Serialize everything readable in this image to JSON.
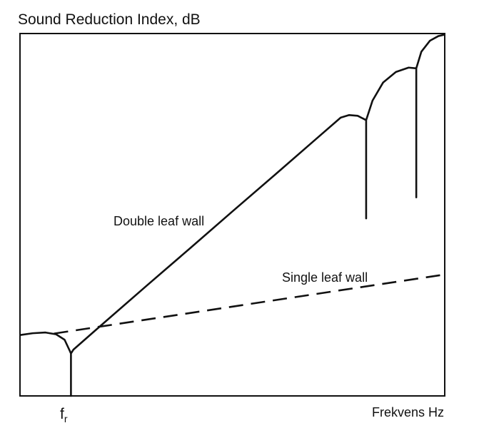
{
  "chart_data": {
    "type": "line",
    "title": "",
    "ylabel": "Sound Reduction Index, dB",
    "xlabel": "Frekvens Hz",
    "grid": false,
    "legend": "none",
    "annotations": [
      {
        "name": "resonance-frequency",
        "label": "f",
        "subscript": "r"
      }
    ],
    "series": [
      {
        "name": "Double leaf wall",
        "style": "solid",
        "color": "#111111",
        "points": [
          [
            0,
            16.8
          ],
          [
            3,
            17.3
          ],
          [
            6,
            17.5
          ],
          [
            8.5,
            17.0
          ],
          [
            10.5,
            15.5
          ],
          [
            11.7,
            12.5
          ],
          [
            12.0,
            11.7
          ],
          [
            12.0,
            0.0
          ],
          [
            12.0,
            11.7
          ],
          [
            12.6,
            12.8
          ],
          [
            20,
            20.4
          ],
          [
            30,
            30.6
          ],
          [
            40,
            40.7
          ],
          [
            50,
            50.9
          ],
          [
            60,
            61.0
          ],
          [
            70,
            71.2
          ],
          [
            75.5,
            76.8
          ],
          [
            77.5,
            77.5
          ],
          [
            79.5,
            77.3
          ],
          [
            81.5,
            76.1
          ],
          [
            81.5,
            49.0
          ],
          [
            81.5,
            76.1
          ],
          [
            83.0,
            81.5
          ],
          [
            85.5,
            86.5
          ],
          [
            88.5,
            89.4
          ],
          [
            91.5,
            90.6
          ],
          [
            93.3,
            90.4
          ],
          [
            93.3,
            54.8
          ],
          [
            93.3,
            90.4
          ],
          [
            94.5,
            95.0
          ],
          [
            96.5,
            98.0
          ],
          [
            98.5,
            99.3
          ],
          [
            100,
            99.7
          ]
        ]
      },
      {
        "name": "Single leaf wall",
        "style": "dashed",
        "color": "#111111",
        "points": [
          [
            8.0,
            17.2
          ],
          [
            100,
            33.5
          ]
        ]
      }
    ],
    "xlim": [
      0,
      100
    ],
    "ylim": [
      0,
      100
    ]
  },
  "labels": {
    "double_leaf_wall": "Double leaf wall",
    "single_leaf_wall": "Single leaf wall"
  }
}
